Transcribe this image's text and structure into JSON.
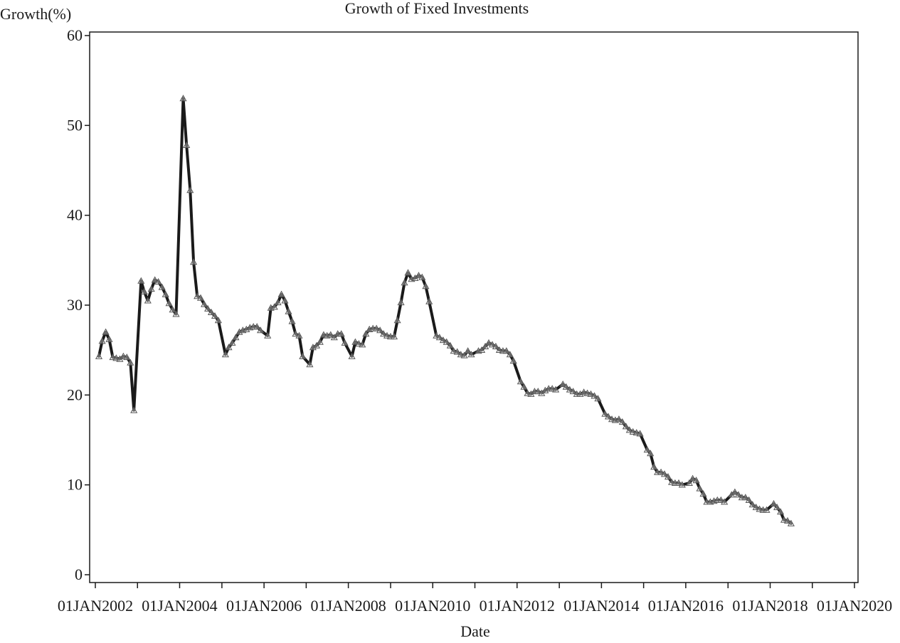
{
  "chart_data": {
    "type": "line",
    "title": "Growth of Fixed Investments",
    "xlabel": "Date",
    "ylabel": "Growth(%)",
    "ylim": [
      0,
      60
    ],
    "yticks": [
      "0",
      "10",
      "20",
      "30",
      "40",
      "50",
      "60"
    ],
    "xlim": [
      "2002-01-01",
      "2020-01-01"
    ],
    "xticks": [
      "01JAN2002",
      "01JAN2004",
      "01JAN2006",
      "01JAN2008",
      "01JAN2010",
      "01JAN2012",
      "01JAN2014",
      "01JAN2016",
      "01JAN2018",
      "01JAN2020"
    ],
    "grid": false,
    "marker": "triangle",
    "line_color": "#1a1a1a",
    "series": [
      {
        "points": [
          [
            "2002-02",
            24.3
          ],
          [
            "2002-03",
            26.0
          ],
          [
            "2002-04",
            27.0
          ],
          [
            "2002-05",
            26.2
          ],
          [
            "2002-06",
            24.2
          ],
          [
            "2002-07",
            24.1
          ],
          [
            "2002-08",
            24.0
          ],
          [
            "2002-09",
            24.3
          ],
          [
            "2002-10",
            24.2
          ],
          [
            "2002-11",
            23.6
          ],
          [
            "2002-12",
            18.3
          ],
          [
            "2003-02",
            32.7
          ],
          [
            "2003-03",
            31.5
          ],
          [
            "2003-04",
            30.5
          ],
          [
            "2003-05",
            31.8
          ],
          [
            "2003-06",
            32.8
          ],
          [
            "2003-07",
            32.6
          ],
          [
            "2003-08",
            32.0
          ],
          [
            "2003-09",
            31.2
          ],
          [
            "2003-10",
            30.2
          ],
          [
            "2003-11",
            29.5
          ],
          [
            "2003-12",
            29.0
          ],
          [
            "2004-02",
            53.0
          ],
          [
            "2004-03",
            47.8
          ],
          [
            "2004-04",
            42.8
          ],
          [
            "2004-05",
            34.8
          ],
          [
            "2004-06",
            31.0
          ],
          [
            "2004-07",
            30.8
          ],
          [
            "2004-08",
            30.1
          ],
          [
            "2004-09",
            29.6
          ],
          [
            "2004-10",
            29.2
          ],
          [
            "2004-11",
            28.8
          ],
          [
            "2004-12",
            28.3
          ],
          [
            "2005-02",
            24.5
          ],
          [
            "2005-03",
            25.3
          ],
          [
            "2005-04",
            25.8
          ],
          [
            "2005-05",
            26.4
          ],
          [
            "2005-06",
            27.0
          ],
          [
            "2005-07",
            27.2
          ],
          [
            "2005-08",
            27.3
          ],
          [
            "2005-09",
            27.5
          ],
          [
            "2005-10",
            27.6
          ],
          [
            "2005-11",
            27.6
          ],
          [
            "2005-12",
            27.2
          ],
          [
            "2006-02",
            26.6
          ],
          [
            "2006-03",
            29.7
          ],
          [
            "2006-04",
            29.8
          ],
          [
            "2006-05",
            30.3
          ],
          [
            "2006-06",
            31.2
          ],
          [
            "2006-07",
            30.5
          ],
          [
            "2006-08",
            29.3
          ],
          [
            "2006-09",
            28.2
          ],
          [
            "2006-10",
            26.8
          ],
          [
            "2006-11",
            26.6
          ],
          [
            "2006-12",
            24.3
          ],
          [
            "2007-02",
            23.4
          ],
          [
            "2007-03",
            25.3
          ],
          [
            "2007-04",
            25.5
          ],
          [
            "2007-05",
            25.9
          ],
          [
            "2007-06",
            26.7
          ],
          [
            "2007-07",
            26.6
          ],
          [
            "2007-08",
            26.7
          ],
          [
            "2007-09",
            26.4
          ],
          [
            "2007-10",
            26.8
          ],
          [
            "2007-11",
            26.8
          ],
          [
            "2007-12",
            25.8
          ],
          [
            "2008-02",
            24.3
          ],
          [
            "2008-03",
            25.9
          ],
          [
            "2008-04",
            25.7
          ],
          [
            "2008-05",
            25.6
          ],
          [
            "2008-06",
            26.8
          ],
          [
            "2008-07",
            27.3
          ],
          [
            "2008-08",
            27.4
          ],
          [
            "2008-09",
            27.4
          ],
          [
            "2008-10",
            27.2
          ],
          [
            "2008-11",
            26.8
          ],
          [
            "2008-12",
            26.6
          ],
          [
            "2009-01",
            26.5
          ],
          [
            "2009-02",
            26.5
          ],
          [
            "2009-03",
            28.3
          ],
          [
            "2009-04",
            30.3
          ],
          [
            "2009-05",
            32.5
          ],
          [
            "2009-06",
            33.6
          ],
          [
            "2009-07",
            32.9
          ],
          [
            "2009-08",
            33.0
          ],
          [
            "2009-09",
            33.3
          ],
          [
            "2009-10",
            33.1
          ],
          [
            "2009-11",
            32.1
          ],
          [
            "2009-12",
            30.4
          ],
          [
            "2010-02",
            26.6
          ],
          [
            "2010-03",
            26.4
          ],
          [
            "2010-04",
            26.1
          ],
          [
            "2010-05",
            25.9
          ],
          [
            "2010-06",
            25.5
          ],
          [
            "2010-07",
            24.9
          ],
          [
            "2010-08",
            24.8
          ],
          [
            "2010-09",
            24.5
          ],
          [
            "2010-10",
            24.4
          ],
          [
            "2010-11",
            24.9
          ],
          [
            "2010-12",
            24.5
          ],
          [
            "2011-02",
            24.9
          ],
          [
            "2011-03",
            25.0
          ],
          [
            "2011-04",
            25.4
          ],
          [
            "2011-05",
            25.8
          ],
          [
            "2011-06",
            25.6
          ],
          [
            "2011-07",
            25.4
          ],
          [
            "2011-08",
            25.0
          ],
          [
            "2011-09",
            24.9
          ],
          [
            "2011-10",
            24.9
          ],
          [
            "2011-11",
            24.5
          ],
          [
            "2011-12",
            23.8
          ],
          [
            "2012-02",
            21.5
          ],
          [
            "2012-03",
            20.9
          ],
          [
            "2012-04",
            20.2
          ],
          [
            "2012-05",
            20.1
          ],
          [
            "2012-06",
            20.4
          ],
          [
            "2012-07",
            20.4
          ],
          [
            "2012-08",
            20.2
          ],
          [
            "2012-09",
            20.5
          ],
          [
            "2012-10",
            20.7
          ],
          [
            "2012-11",
            20.7
          ],
          [
            "2012-12",
            20.6
          ],
          [
            "2013-02",
            21.2
          ],
          [
            "2013-03",
            20.9
          ],
          [
            "2013-04",
            20.6
          ],
          [
            "2013-05",
            20.4
          ],
          [
            "2013-06",
            20.1
          ],
          [
            "2013-07",
            20.1
          ],
          [
            "2013-08",
            20.3
          ],
          [
            "2013-09",
            20.2
          ],
          [
            "2013-10",
            20.1
          ],
          [
            "2013-11",
            19.9
          ],
          [
            "2013-12",
            19.6
          ],
          [
            "2014-02",
            17.9
          ],
          [
            "2014-03",
            17.6
          ],
          [
            "2014-04",
            17.3
          ],
          [
            "2014-05",
            17.2
          ],
          [
            "2014-06",
            17.3
          ],
          [
            "2014-07",
            17.0
          ],
          [
            "2014-08",
            16.5
          ],
          [
            "2014-09",
            16.1
          ],
          [
            "2014-10",
            15.9
          ],
          [
            "2014-11",
            15.8
          ],
          [
            "2014-12",
            15.7
          ],
          [
            "2015-02",
            13.9
          ],
          [
            "2015-03",
            13.5
          ],
          [
            "2015-04",
            12.0
          ],
          [
            "2015-05",
            11.4
          ],
          [
            "2015-06",
            11.4
          ],
          [
            "2015-07",
            11.2
          ],
          [
            "2015-08",
            10.9
          ],
          [
            "2015-09",
            10.3
          ],
          [
            "2015-10",
            10.2
          ],
          [
            "2015-11",
            10.2
          ],
          [
            "2015-12",
            10.0
          ],
          [
            "2016-02",
            10.2
          ],
          [
            "2016-03",
            10.7
          ],
          [
            "2016-04",
            10.5
          ],
          [
            "2016-05",
            9.6
          ],
          [
            "2016-06",
            9.0
          ],
          [
            "2016-07",
            8.1
          ],
          [
            "2016-08",
            8.1
          ],
          [
            "2016-09",
            8.2
          ],
          [
            "2016-10",
            8.3
          ],
          [
            "2016-11",
            8.3
          ],
          [
            "2016-12",
            8.1
          ],
          [
            "2017-02",
            8.9
          ],
          [
            "2017-03",
            9.2
          ],
          [
            "2017-04",
            8.9
          ],
          [
            "2017-05",
            8.6
          ],
          [
            "2017-06",
            8.6
          ],
          [
            "2017-07",
            8.3
          ],
          [
            "2017-08",
            7.8
          ],
          [
            "2017-09",
            7.5
          ],
          [
            "2017-10",
            7.3
          ],
          [
            "2017-11",
            7.2
          ],
          [
            "2017-12",
            7.2
          ],
          [
            "2018-02",
            7.9
          ],
          [
            "2018-03",
            7.5
          ],
          [
            "2018-04",
            7.0
          ],
          [
            "2018-05",
            6.1
          ],
          [
            "2018-06",
            6.0
          ],
          [
            "2018-07",
            5.7
          ]
        ]
      }
    ]
  }
}
